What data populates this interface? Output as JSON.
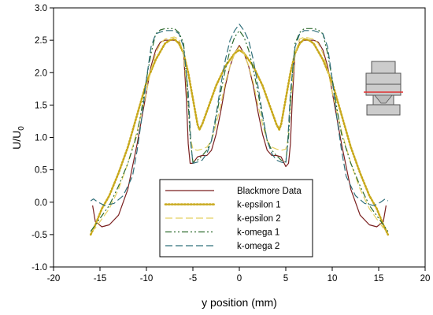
{
  "chart_data": {
    "type": "line",
    "xlabel": "y position (mm)",
    "ylabel_main": "U/U",
    "ylabel_sub": "0",
    "xlim": [
      -20,
      20
    ],
    "ylim": [
      -1.0,
      3.0
    ],
    "xticks": [
      -20,
      -15,
      -10,
      -5,
      0,
      5,
      10,
      15,
      20
    ],
    "xtick_labels": [
      "-20",
      "-15",
      "-10",
      "-5",
      "0",
      "5",
      "10",
      "15",
      "20"
    ],
    "yticks": [
      -1.0,
      -0.5,
      0.0,
      0.5,
      1.0,
      1.5,
      2.0,
      2.5,
      3.0
    ],
    "ytick_labels": [
      "-1.0",
      "-0.5",
      "0.0",
      "0.5",
      "1.0",
      "1.5",
      "2.0",
      "2.5",
      "3.0"
    ],
    "grid": false,
    "legend_position": "bottom-center",
    "series": [
      {
        "name": "Blackmore Data",
        "color": "#7a1f1f",
        "dash": "solid",
        "x": [
          -15.8,
          -15.5,
          -14.8,
          -14.0,
          -13.0,
          -12.0,
          -11.0,
          -10.0,
          -9.5,
          -9.0,
          -8.5,
          -8.0,
          -7.0,
          -6.5,
          -6.0,
          -5.7,
          -5.5,
          -5.3,
          -5.0,
          -4.5,
          -4.0,
          -3.5,
          -3.0,
          -2.5,
          -2.0,
          -1.5,
          -1.0,
          -0.5,
          0.0,
          0.5,
          1.0,
          1.5,
          2.0,
          2.5,
          3.0,
          3.5,
          4.0,
          4.5,
          5.0,
          5.3,
          5.5,
          5.7,
          6.0,
          6.5,
          7.0,
          8.0,
          8.5,
          9.0,
          9.5,
          10.0,
          11.0,
          12.0,
          13.0,
          14.0,
          14.8,
          15.5,
          15.8
        ],
        "y": [
          -0.05,
          -0.3,
          -0.38,
          -0.35,
          -0.2,
          0.2,
          0.9,
          1.7,
          2.1,
          2.35,
          2.47,
          2.5,
          2.5,
          2.47,
          2.3,
          1.6,
          0.9,
          0.6,
          0.6,
          0.7,
          0.72,
          0.72,
          0.8,
          1.05,
          1.4,
          1.8,
          2.1,
          2.3,
          2.42,
          2.3,
          2.1,
          1.8,
          1.4,
          1.05,
          0.8,
          0.72,
          0.72,
          0.7,
          0.55,
          0.6,
          0.9,
          1.6,
          2.3,
          2.47,
          2.5,
          2.5,
          2.47,
          2.35,
          2.1,
          1.7,
          0.9,
          0.2,
          -0.2,
          -0.35,
          -0.38,
          -0.3,
          -0.05
        ]
      },
      {
        "name": "k-epsilon 1",
        "color": "#c8a81a",
        "dash": "dotted",
        "x": [
          -16.0,
          -15.5,
          -14.8,
          -14.0,
          -13.0,
          -12.0,
          -11.0,
          -10.0,
          -9.0,
          -8.0,
          -7.5,
          -7.0,
          -6.5,
          -6.0,
          -5.5,
          -5.0,
          -4.5,
          -4.3,
          -4.0,
          -3.5,
          -3.0,
          -2.5,
          -2.0,
          -1.5,
          -1.0,
          -0.5,
          0.0,
          0.5,
          1.0,
          1.5,
          2.0,
          2.5,
          3.0,
          3.5,
          4.0,
          4.3,
          4.5,
          5.0,
          5.5,
          6.0,
          6.5,
          7.0,
          7.5,
          8.0,
          9.0,
          10.0,
          11.0,
          12.0,
          13.0,
          14.0,
          14.8,
          15.5,
          16.0
        ],
        "y": [
          -0.5,
          -0.35,
          -0.1,
          0.1,
          0.45,
          0.85,
          1.35,
          1.85,
          2.2,
          2.45,
          2.5,
          2.52,
          2.45,
          2.3,
          2.0,
          1.6,
          1.2,
          1.12,
          1.2,
          1.4,
          1.6,
          1.8,
          1.95,
          2.1,
          2.2,
          2.3,
          2.35,
          2.3,
          2.2,
          2.1,
          1.95,
          1.8,
          1.6,
          1.4,
          1.2,
          1.12,
          1.2,
          1.6,
          2.0,
          2.3,
          2.45,
          2.52,
          2.5,
          2.45,
          2.2,
          1.85,
          1.35,
          0.85,
          0.45,
          0.1,
          -0.1,
          -0.35,
          -0.5
        ]
      },
      {
        "name": "k-epsilon 2",
        "color": "#e4d060",
        "dash": "long-dash",
        "x": [
          -16.0,
          -15.5,
          -15.0,
          -14.0,
          -13.0,
          -12.0,
          -11.0,
          -10.0,
          -9.5,
          -9.0,
          -8.5,
          -8.0,
          -7.0,
          -6.5,
          -6.0,
          -5.5,
          -5.2,
          -5.0,
          -4.5,
          -4.0,
          -3.5,
          -3.0,
          -2.5,
          -2.0,
          -1.5,
          -1.0,
          -0.5,
          0.0,
          0.5,
          1.0,
          1.5,
          2.0,
          2.5,
          3.0,
          3.5,
          4.0,
          4.5,
          5.0,
          5.2,
          5.5,
          6.0,
          6.5,
          7.0,
          8.0,
          8.5,
          9.0,
          9.5,
          10.0,
          11.0,
          12.0,
          13.0,
          14.0,
          15.0,
          15.5,
          16.0
        ],
        "y": [
          -0.45,
          -0.4,
          -0.3,
          -0.1,
          0.2,
          0.6,
          1.1,
          1.7,
          2.05,
          2.3,
          2.45,
          2.52,
          2.55,
          2.52,
          2.3,
          1.5,
          0.95,
          0.82,
          0.8,
          0.82,
          0.85,
          0.95,
          1.2,
          1.5,
          1.85,
          2.1,
          2.3,
          2.4,
          2.3,
          2.1,
          1.85,
          1.5,
          1.2,
          0.95,
          0.85,
          0.82,
          0.8,
          0.82,
          0.95,
          1.5,
          2.3,
          2.52,
          2.55,
          2.52,
          2.45,
          2.3,
          2.05,
          1.7,
          1.1,
          0.6,
          0.2,
          -0.1,
          -0.3,
          -0.4,
          -0.45
        ]
      },
      {
        "name": "k-omega 1",
        "color": "#2e6b2e",
        "dash": "dash-dot-dot",
        "x": [
          -16.0,
          -15.5,
          -15.0,
          -14.0,
          -13.0,
          -12.0,
          -11.0,
          -10.5,
          -10.0,
          -9.5,
          -9.0,
          -8.5,
          -8.0,
          -7.0,
          -6.5,
          -6.0,
          -5.6,
          -5.3,
          -5.0,
          -4.5,
          -4.0,
          -3.5,
          -3.0,
          -2.5,
          -2.0,
          -1.5,
          -1.0,
          -0.5,
          0.0,
          0.5,
          1.0,
          1.5,
          2.0,
          2.5,
          3.0,
          3.5,
          4.0,
          4.5,
          5.0,
          5.3,
          5.6,
          6.0,
          6.5,
          7.0,
          8.0,
          8.5,
          9.0,
          9.5,
          10.0,
          10.5,
          11.0,
          12.0,
          13.0,
          14.0,
          15.0,
          15.5,
          16.0
        ],
        "y": [
          -0.45,
          -0.35,
          -0.25,
          -0.05,
          0.25,
          0.6,
          1.05,
          1.45,
          1.9,
          2.3,
          2.6,
          2.66,
          2.68,
          2.68,
          2.62,
          2.45,
          1.8,
          1.0,
          0.62,
          0.65,
          0.72,
          0.8,
          0.95,
          1.3,
          1.7,
          2.05,
          2.35,
          2.55,
          2.65,
          2.55,
          2.35,
          2.05,
          1.7,
          1.3,
          0.95,
          0.8,
          0.72,
          0.65,
          0.62,
          1.0,
          1.8,
          2.45,
          2.62,
          2.68,
          2.68,
          2.66,
          2.6,
          2.3,
          1.9,
          1.45,
          1.05,
          0.6,
          0.25,
          -0.05,
          -0.25,
          -0.35,
          -0.45
        ]
      },
      {
        "name": "k-omega 2",
        "color": "#2f6f7a",
        "dash": "long-dash",
        "x": [
          -16.0,
          -15.7,
          -15.2,
          -14.5,
          -13.5,
          -12.5,
          -11.5,
          -11.0,
          -10.5,
          -10.0,
          -9.5,
          -9.0,
          -8.0,
          -7.0,
          -6.5,
          -6.0,
          -5.5,
          -5.2,
          -5.0,
          -4.5,
          -4.0,
          -3.5,
          -3.0,
          -2.5,
          -2.0,
          -1.5,
          -1.0,
          -0.5,
          0.0,
          0.5,
          1.0,
          1.5,
          2.0,
          2.5,
          3.0,
          3.5,
          4.0,
          4.5,
          5.0,
          5.2,
          5.5,
          6.0,
          6.5,
          7.0,
          8.0,
          9.0,
          9.5,
          10.0,
          10.5,
          11.0,
          11.5,
          12.5,
          13.5,
          14.5,
          15.2,
          15.7,
          16.0
        ],
        "y": [
          0.02,
          0.05,
          0.0,
          -0.05,
          -0.02,
          0.1,
          0.4,
          0.8,
          1.3,
          1.9,
          2.4,
          2.6,
          2.65,
          2.65,
          2.6,
          2.4,
          1.7,
          0.9,
          0.6,
          0.62,
          0.65,
          0.75,
          0.95,
          1.35,
          1.8,
          2.2,
          2.5,
          2.65,
          2.75,
          2.65,
          2.5,
          2.2,
          1.8,
          1.35,
          0.95,
          0.75,
          0.65,
          0.62,
          0.6,
          0.9,
          1.7,
          2.4,
          2.6,
          2.65,
          2.65,
          2.6,
          2.4,
          1.9,
          1.3,
          0.8,
          0.4,
          0.1,
          -0.02,
          -0.05,
          0.0,
          0.05,
          0.02
        ]
      }
    ]
  }
}
